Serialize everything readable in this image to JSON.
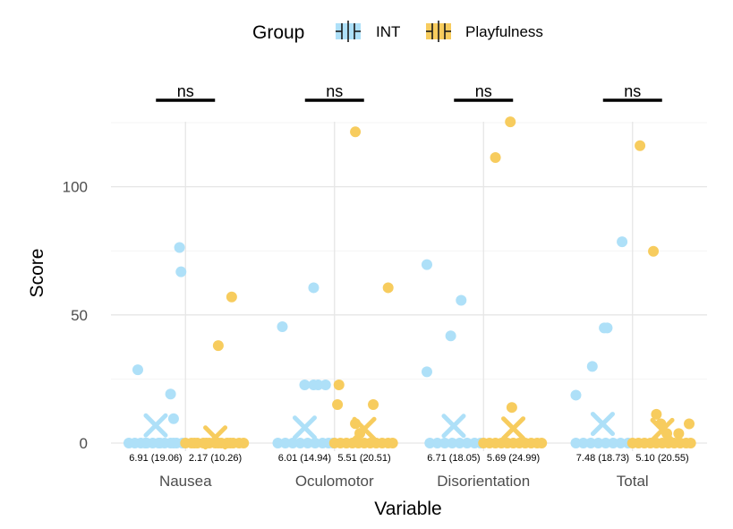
{
  "chart_data": {
    "type": "scatter",
    "xlabel": "Variable",
    "ylabel": "Score",
    "ylim": [
      -3,
      128
    ],
    "yticks": [
      0,
      50,
      100
    ],
    "grid": true,
    "legend": {
      "title": "Group",
      "position": "top",
      "entries": [
        "INT",
        "Playfulness"
      ]
    },
    "colors": {
      "INT": "#aee0f8",
      "Playfulness": "#f7cc5e",
      "sigbar": "#000000",
      "grid": "#ebebeb"
    },
    "categories": [
      "Nausea",
      "Oculomotor",
      "Disorientation",
      "Total"
    ],
    "significance": [
      "ns",
      "ns",
      "ns",
      "ns"
    ],
    "series": [
      {
        "name": "INT",
        "means": [
          6.91,
          6.01,
          6.71,
          7.48
        ],
        "summary_labels": [
          "6.91 (19.06)",
          "6.01 (14.94)",
          "6.71 (18.05)",
          "7.48 (18.73)"
        ],
        "points": [
          [
            [
              -0.38,
              0
            ],
            [
              -0.34,
              0
            ],
            [
              -0.3,
              0
            ],
            [
              -0.26,
              0
            ],
            [
              -0.22,
              0
            ],
            [
              -0.18,
              0
            ],
            [
              -0.14,
              0
            ],
            [
              -0.1,
              0
            ],
            [
              -0.06,
              0
            ],
            [
              -0.02,
              0
            ],
            [
              -0.08,
              0
            ],
            [
              -0.17,
              0
            ],
            [
              -0.27,
              0
            ],
            [
              -0.32,
              28.6
            ],
            [
              -0.1,
              19.1
            ],
            [
              -0.08,
              9.5
            ],
            [
              -0.04,
              76.3
            ],
            [
              -0.03,
              66.8
            ]
          ],
          [
            [
              -0.38,
              0
            ],
            [
              -0.33,
              0
            ],
            [
              -0.28,
              0
            ],
            [
              -0.23,
              0
            ],
            [
              -0.18,
              0
            ],
            [
              -0.13,
              0
            ],
            [
              -0.08,
              0
            ],
            [
              -0.04,
              0
            ],
            [
              -0.01,
              0
            ],
            [
              -0.35,
              45.4
            ],
            [
              -0.2,
              22.7
            ],
            [
              -0.14,
              22.7
            ],
            [
              -0.11,
              22.7
            ],
            [
              -0.06,
              22.7
            ],
            [
              -0.14,
              60.6
            ]
          ],
          [
            [
              -0.36,
              0
            ],
            [
              -0.31,
              0
            ],
            [
              -0.26,
              0
            ],
            [
              -0.21,
              0
            ],
            [
              -0.16,
              0
            ],
            [
              -0.11,
              0
            ],
            [
              -0.06,
              0
            ],
            [
              -0.02,
              0
            ],
            [
              -0.38,
              69.6
            ],
            [
              -0.38,
              27.8
            ],
            [
              -0.22,
              41.8
            ],
            [
              -0.15,
              55.7
            ]
          ],
          [
            [
              -0.38,
              0
            ],
            [
              -0.33,
              0
            ],
            [
              -0.28,
              0
            ],
            [
              -0.23,
              0
            ],
            [
              -0.18,
              0
            ],
            [
              -0.13,
              0
            ],
            [
              -0.08,
              0
            ],
            [
              -0.03,
              0
            ],
            [
              -0.38,
              18.7
            ],
            [
              -0.27,
              29.9
            ],
            [
              -0.19,
              44.9
            ],
            [
              -0.17,
              44.9
            ],
            [
              -0.07,
              78.5
            ]
          ]
        ]
      },
      {
        "name": "Playfulness",
        "means": [
          2.17,
          5.51,
          5.69,
          5.1
        ],
        "summary_labels": [
          "2.17 (10.26)",
          "5.51 (20.51)",
          "5.69 (24.99)",
          "5.10 (20.55)"
        ],
        "points": [
          [
            [
              0.0,
              0
            ],
            [
              0.04,
              0
            ],
            [
              0.08,
              0
            ],
            [
              0.12,
              0
            ],
            [
              0.16,
              0
            ],
            [
              0.2,
              0
            ],
            [
              0.24,
              0
            ],
            [
              0.28,
              0
            ],
            [
              0.32,
              0
            ],
            [
              0.36,
              0
            ],
            [
              0.39,
              0
            ],
            [
              0.06,
              0
            ],
            [
              0.14,
              0
            ],
            [
              0.22,
              0
            ],
            [
              0.3,
              0
            ],
            [
              0.22,
              38
            ],
            [
              0.31,
              57
            ]
          ],
          [
            [
              0.0,
              0
            ],
            [
              0.04,
              0
            ],
            [
              0.08,
              0
            ],
            [
              0.12,
              0
            ],
            [
              0.16,
              0
            ],
            [
              0.2,
              0
            ],
            [
              0.24,
              0
            ],
            [
              0.28,
              0
            ],
            [
              0.32,
              0
            ],
            [
              0.36,
              0
            ],
            [
              0.39,
              0
            ],
            [
              0.02,
              15
            ],
            [
              0.03,
              22.7
            ],
            [
              0.14,
              7.6
            ],
            [
              0.17,
              3.8
            ],
            [
              0.26,
              15
            ],
            [
              0.36,
              60.6
            ],
            [
              0.14,
              121.4
            ]
          ],
          [
            [
              0.0,
              0
            ],
            [
              0.04,
              0
            ],
            [
              0.08,
              0
            ],
            [
              0.12,
              0
            ],
            [
              0.16,
              0
            ],
            [
              0.2,
              0
            ],
            [
              0.24,
              0
            ],
            [
              0.28,
              0
            ],
            [
              0.32,
              0
            ],
            [
              0.36,
              0
            ],
            [
              0.39,
              0
            ],
            [
              0.19,
              13.9
            ],
            [
              0.08,
              111.4
            ],
            [
              0.18,
              125.3
            ]
          ],
          [
            [
              0.0,
              0
            ],
            [
              0.04,
              0
            ],
            [
              0.08,
              0
            ],
            [
              0.12,
              0
            ],
            [
              0.16,
              0
            ],
            [
              0.2,
              0
            ],
            [
              0.24,
              0
            ],
            [
              0.28,
              0
            ],
            [
              0.32,
              0
            ],
            [
              0.36,
              0
            ],
            [
              0.39,
              0
            ],
            [
              0.16,
              11.2
            ],
            [
              0.19,
              7.5
            ],
            [
              0.23,
              3.7
            ],
            [
              0.31,
              3.7
            ],
            [
              0.38,
              7.5
            ],
            [
              0.14,
              74.8
            ],
            [
              0.05,
              116
            ]
          ]
        ]
      }
    ]
  }
}
